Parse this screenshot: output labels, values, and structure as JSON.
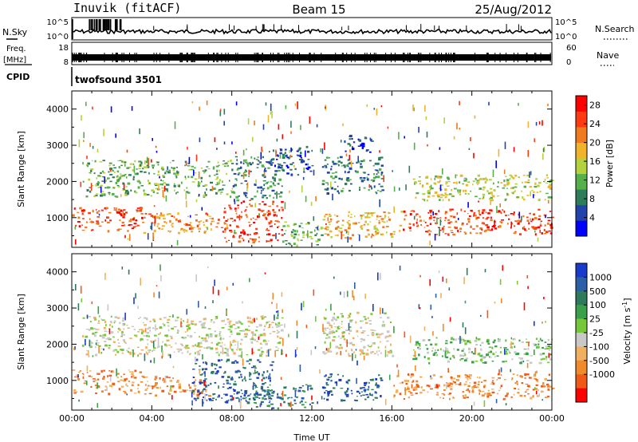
{
  "header": {
    "station": "Inuvik (fitACF)",
    "beam": "Beam 15",
    "date": "25/Aug/2012"
  },
  "side_labels": {
    "nsky": "N.Sky",
    "nsearch": "N.Search",
    "freq": "Freq.",
    "freq_unit": "[MHz]",
    "nave": "Nave",
    "cpid": "CPID"
  },
  "cpid_label": "twofsound 3501",
  "panel1_ticks_left": [
    "10^5",
    "10^0"
  ],
  "panel1_ticks_right": [
    "10^5",
    "10^0"
  ],
  "panel2_ticks_left": [
    "18",
    "8"
  ],
  "panel2_ticks_right": [
    "60",
    "0"
  ],
  "chart_data": [
    {
      "type": "heatmap",
      "name": "power",
      "xlabel": "",
      "ylabel": "Slant Range [km]",
      "x_ticks": [
        "00:00",
        "04:00",
        "08:00",
        "12:00",
        "16:00",
        "20:00",
        "00:00"
      ],
      "xlim_hours": [
        0,
        24
      ],
      "y_ticks": [
        1000,
        2000,
        3000,
        4000
      ],
      "ylim": [
        180,
        4500
      ],
      "colorbar": {
        "label": "Power [dB]",
        "ticks": [
          4,
          8,
          12,
          16,
          20,
          24,
          28
        ],
        "range": [
          0,
          30
        ],
        "colors": [
          "#0000ff",
          "#2244aa",
          "#2e7d5a",
          "#55b04a",
          "#b4d23c",
          "#f0b42a",
          "#f07a1e",
          "#ff3a12",
          "#ff0000"
        ]
      },
      "bands": [
        {
          "x0": 0.0,
          "x1": 3.5,
          "y0": 650,
          "y1": 1300,
          "level": 7
        },
        {
          "x0": 3.5,
          "x1": 7.5,
          "y0": 600,
          "y1": 1150,
          "level": 6
        },
        {
          "x0": 7.5,
          "x1": 10.5,
          "y0": 350,
          "y1": 1500,
          "level": 7
        },
        {
          "x0": 10.5,
          "x1": 12.5,
          "y0": 250,
          "y1": 900,
          "level": 3
        },
        {
          "x0": 12.5,
          "x1": 16.5,
          "y0": 450,
          "y1": 1200,
          "level": 5
        },
        {
          "x0": 16.5,
          "x1": 24.0,
          "y0": 550,
          "y1": 1250,
          "level": 7
        },
        {
          "x0": 0.5,
          "x1": 8.0,
          "y0": 1600,
          "y1": 2600,
          "level": 3
        },
        {
          "x0": 8.0,
          "x1": 10.5,
          "y0": 1500,
          "y1": 2700,
          "level": 2
        },
        {
          "x0": 12.5,
          "x1": 15.5,
          "y0": 1700,
          "y1": 2700,
          "level": 2
        },
        {
          "x0": 17.0,
          "x1": 24.0,
          "y0": 1500,
          "y1": 2200,
          "level": 4
        },
        {
          "x0": 10.0,
          "x1": 12.0,
          "y0": 2200,
          "y1": 3000,
          "level": 1
        },
        {
          "x0": 13.5,
          "x1": 15.0,
          "y0": 2800,
          "y1": 3300,
          "level": 1
        }
      ]
    },
    {
      "type": "heatmap",
      "name": "velocity",
      "xlabel": "Time UT",
      "ylabel": "Slant Range [km]",
      "x_ticks": [
        "00:00",
        "04:00",
        "08:00",
        "12:00",
        "16:00",
        "20:00",
        "00:00"
      ],
      "xlim_hours": [
        0,
        24
      ],
      "y_ticks": [
        1000,
        2000,
        3000,
        4000
      ],
      "ylim": [
        180,
        4500
      ],
      "colorbar": {
        "label": "Velocity [m s^-1]",
        "ticks": [
          "1000",
          "500",
          "100",
          "25",
          "-25",
          "-100",
          "-500",
          "-1000"
        ],
        "colors": [
          "#1a3acb",
          "#2c5fa6",
          "#2e7a5c",
          "#3aa04a",
          "#76c83a",
          "#c8c8c8",
          "#f0b060",
          "#f08a2a",
          "#f05a18",
          "#ff0000"
        ]
      },
      "bands": [
        {
          "x0": 0.0,
          "x1": 3.5,
          "y0": 650,
          "y1": 1300,
          "level": 7
        },
        {
          "x0": 3.5,
          "x1": 7.0,
          "y0": 600,
          "y1": 1150,
          "level": 7
        },
        {
          "x0": 6.0,
          "x1": 10.0,
          "y0": 400,
          "y1": 1600,
          "level": 1
        },
        {
          "x0": 9.0,
          "x1": 12.0,
          "y0": 250,
          "y1": 900,
          "level": 2
        },
        {
          "x0": 12.5,
          "x1": 15.5,
          "y0": 450,
          "y1": 1200,
          "level": 1
        },
        {
          "x0": 16.0,
          "x1": 24.0,
          "y0": 500,
          "y1": 1200,
          "level": 7
        },
        {
          "x0": 0.5,
          "x1": 10.5,
          "y0": 1700,
          "y1": 2800,
          "level": 5
        },
        {
          "x0": 12.5,
          "x1": 16.0,
          "y0": 1700,
          "y1": 2900,
          "level": 5
        },
        {
          "x0": 17.0,
          "x1": 24.0,
          "y0": 1500,
          "y1": 2200,
          "level": 4
        }
      ]
    }
  ]
}
